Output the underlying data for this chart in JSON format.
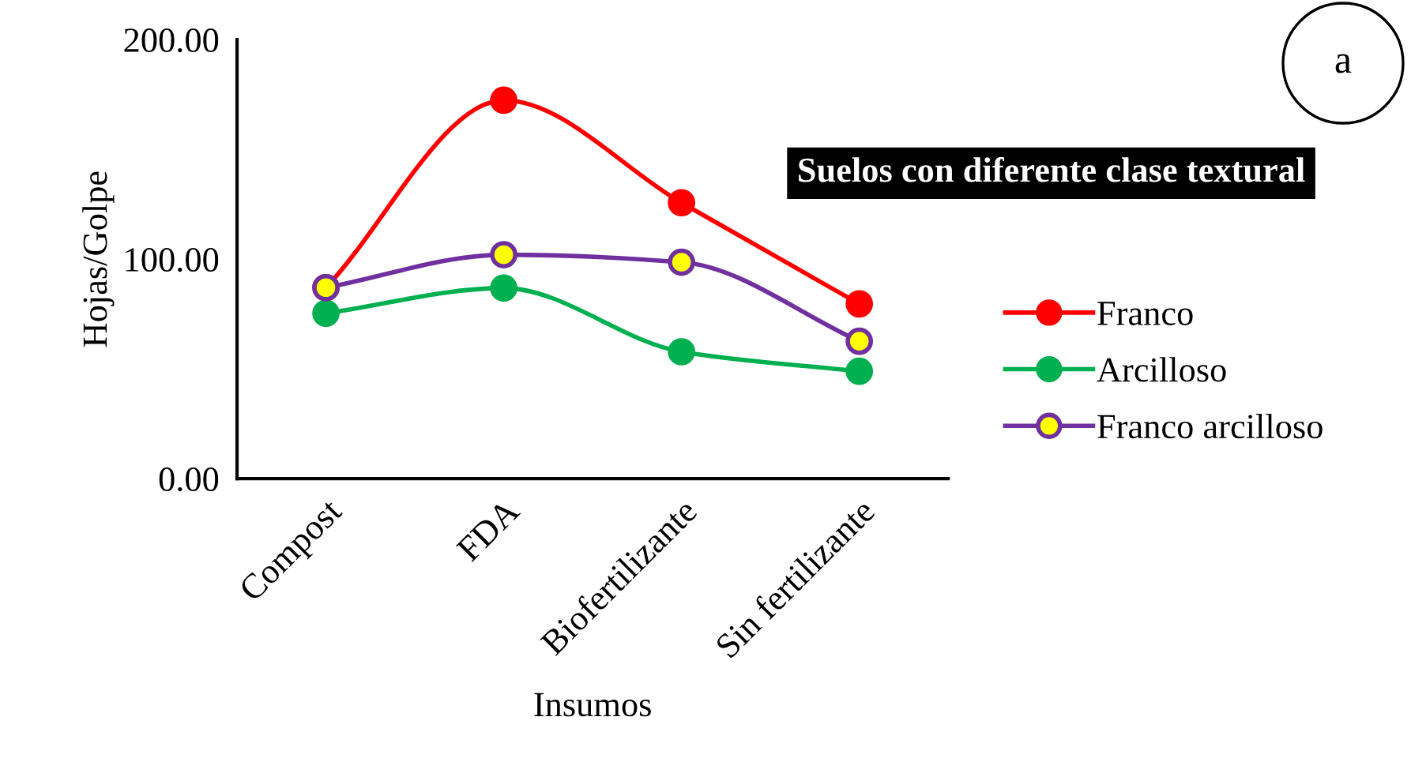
{
  "chart_data": {
    "type": "line",
    "xlabel": "Insumos",
    "ylabel": "Hojas/Golpe",
    "categories": [
      "Compost",
      "FDA",
      "Biofertilizante",
      "Sin fertilizante"
    ],
    "series": [
      {
        "name": "Franco",
        "color": "#ff0000",
        "values": [
          87,
          172.4,
          125.7,
          79.6
        ]
      },
      {
        "name": "Arcilloso",
        "color": "#00b050",
        "values": [
          75.3,
          86.8,
          57.8,
          48.9
        ]
      },
      {
        "name": "Franco arcilloso",
        "color": "#7030a0",
        "colors": [
          "#ffff00",
          "#ffff00",
          "#ffff00",
          "#ffff00"
        ],
        "values": [
          87,
          102,
          98.6,
          62.6
        ]
      }
    ],
    "ylim": [
      0,
      200
    ],
    "yticks": [
      {
        "value": 0,
        "label": "0.00"
      },
      {
        "value": 100,
        "label": "100.00"
      },
      {
        "value": 200,
        "label": "200.00"
      }
    ],
    "grid": false,
    "legend": "right",
    "marker": "circle",
    "line_style": "solid",
    "annotations": [
      "Suelos con diferente clase textural",
      "a"
    ]
  }
}
